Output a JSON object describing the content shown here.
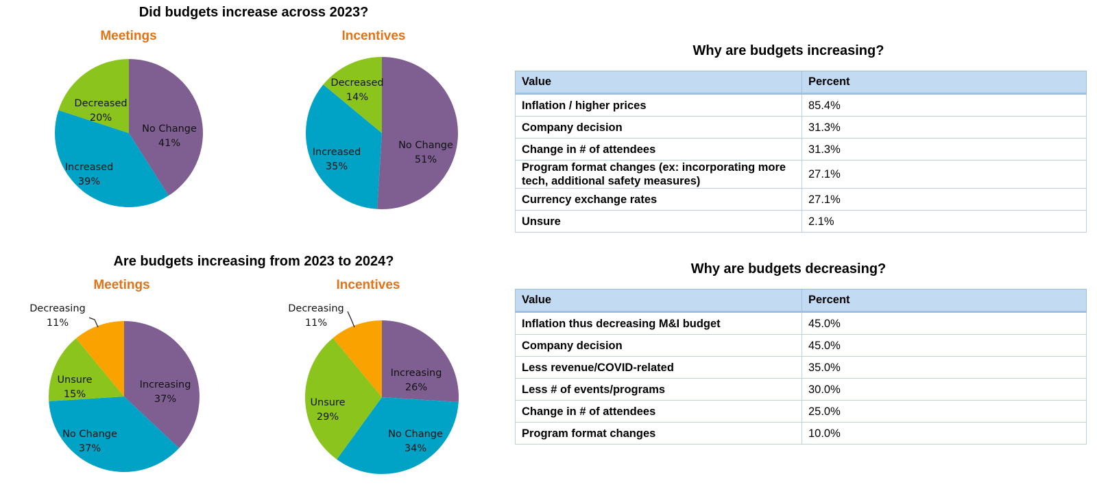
{
  "colors": {
    "no_change": "#7f5f92",
    "increase": "#00a3c6",
    "decrease": "#8cc41e",
    "decreasing": "#f9a200",
    "unsure": "#8cc41e",
    "pie_title": "#e07318",
    "table_header_bg": "#c3daf3",
    "table_border": "#9fbfe0"
  },
  "section1": {
    "title": "Did budgets increase across 2023?"
  },
  "section2": {
    "title": "Are budgets increasing from 2023 to 2024?"
  },
  "chart_data": [
    {
      "type": "pie",
      "title": "Meetings",
      "group": "Did budgets increase across 2023?",
      "slices": [
        {
          "label": "No Change",
          "value": 41,
          "display": "41%",
          "color": "#7f5f92"
        },
        {
          "label": "Increased",
          "value": 39,
          "display": "39%",
          "color": "#00a3c6"
        },
        {
          "label": "Decreased",
          "value": 20,
          "display": "20%",
          "color": "#8cc41e"
        }
      ]
    },
    {
      "type": "pie",
      "title": "Incentives",
      "group": "Did budgets increase across 2023?",
      "slices": [
        {
          "label": "No Change",
          "value": 51,
          "display": "51%",
          "color": "#7f5f92"
        },
        {
          "label": "Increased",
          "value": 35,
          "display": "35%",
          "color": "#00a3c6"
        },
        {
          "label": "Decreased",
          "value": 14,
          "display": "14%",
          "color": "#8cc41e"
        }
      ]
    },
    {
      "type": "pie",
      "title": "Meetings",
      "group": "Are budgets increasing from 2023 to 2024?",
      "slices": [
        {
          "label": "Increasing",
          "value": 37,
          "display": "37%",
          "color": "#7f5f92"
        },
        {
          "label": "No Change",
          "value": 37,
          "display": "37%",
          "color": "#00a3c6"
        },
        {
          "label": "Unsure",
          "value": 15,
          "display": "15%",
          "color": "#8cc41e"
        },
        {
          "label": "Decreasing",
          "value": 11,
          "display": "11%",
          "color": "#f9a200"
        }
      ]
    },
    {
      "type": "pie",
      "title": "Incentives",
      "group": "Are budgets increasing from 2023 to 2024?",
      "slices": [
        {
          "label": "Increasing",
          "value": 26,
          "display": "26%",
          "color": "#7f5f92"
        },
        {
          "label": "No Change",
          "value": 34,
          "display": "34%",
          "color": "#00a3c6"
        },
        {
          "label": "Unsure",
          "value": 29,
          "display": "29%",
          "color": "#8cc41e"
        },
        {
          "label": "Decreasing",
          "value": 11,
          "display": "11%",
          "color": "#f9a200"
        }
      ]
    },
    {
      "type": "table",
      "title": "Why are budgets increasing?",
      "columns": [
        "Value",
        "Percent"
      ],
      "rows": [
        [
          "Inflation / higher prices",
          "85.4%"
        ],
        [
          "Company decision",
          "31.3%"
        ],
        [
          "Change in # of attendees",
          "31.3%"
        ],
        [
          "Program format changes (ex: incorporating more tech, additional safety measures)",
          "27.1%"
        ],
        [
          "Currency exchange rates",
          "27.1%"
        ],
        [
          "Unsure",
          "2.1%"
        ]
      ]
    },
    {
      "type": "table",
      "title": "Why are budgets decreasing?",
      "columns": [
        "Value",
        "Percent"
      ],
      "rows": [
        [
          "Inflation thus decreasing M&I budget",
          "45.0%"
        ],
        [
          "Company decision",
          "45.0%"
        ],
        [
          "Less revenue/COVID-related",
          "35.0%"
        ],
        [
          "Less # of events/programs",
          "30.0%"
        ],
        [
          "Change in # of attendees",
          "25.0%"
        ],
        [
          "Program format changes",
          "10.0%"
        ]
      ]
    }
  ]
}
